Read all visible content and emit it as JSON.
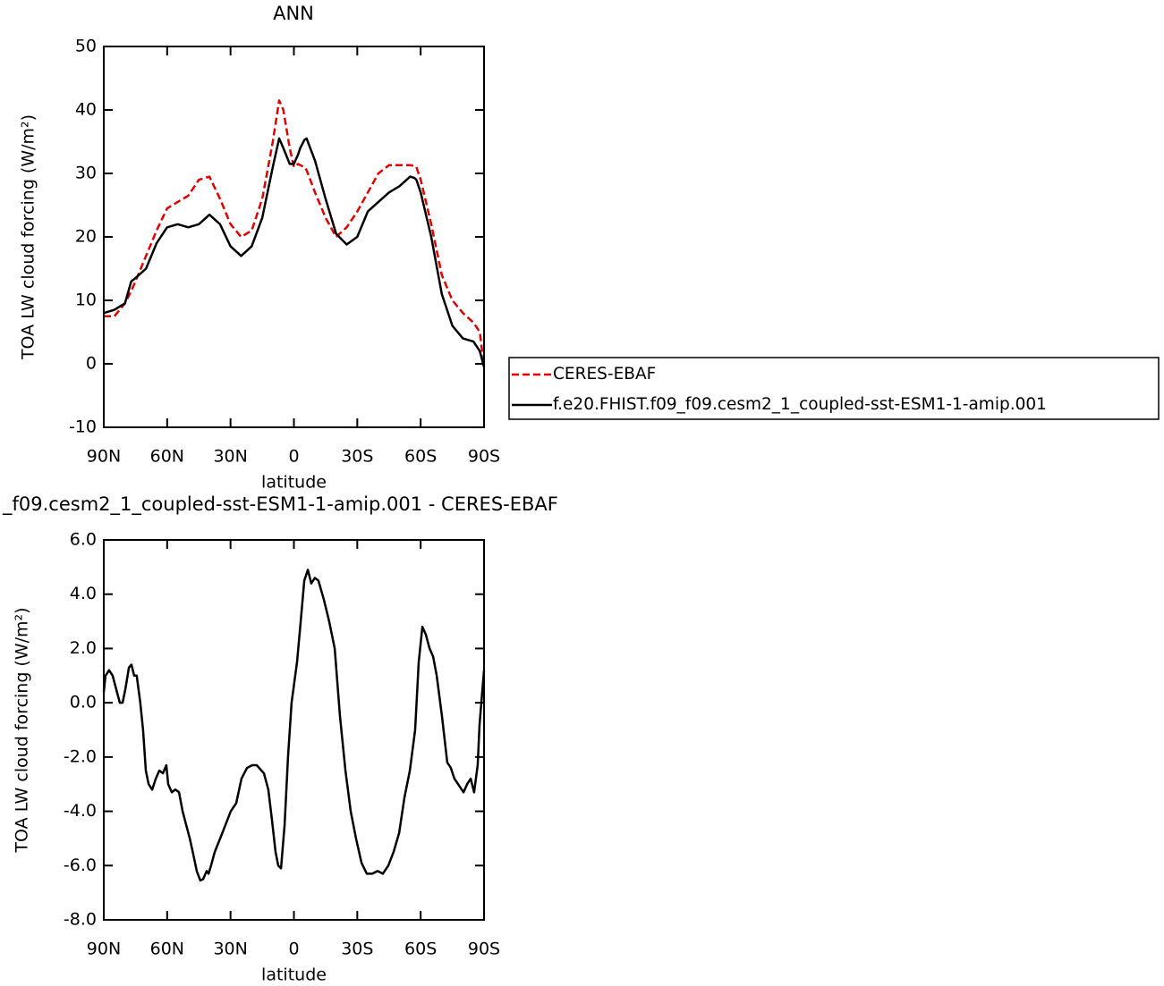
{
  "chart_data": [
    {
      "type": "line",
      "title": "ANN",
      "x_label": "latitude",
      "y_label": "TOA LW cloud forcing (W/m²)",
      "x": [
        90,
        85,
        80,
        77,
        75,
        70,
        65,
        60,
        55,
        50,
        45,
        40,
        35,
        30,
        25,
        20,
        15,
        10,
        7,
        5,
        2,
        0,
        -2,
        -3,
        -5,
        -6,
        -10,
        -15,
        -20,
        -25,
        -30,
        -35,
        -40,
        -45,
        -50,
        -55,
        -57,
        -58,
        -60,
        -65,
        -70,
        -75,
        -80,
        -85,
        -88,
        -90
      ],
      "series": [
        {
          "name": "CERES-EBAF",
          "color": "#e00000",
          "dashed": true,
          "values": [
            7.5,
            7.5,
            9.5,
            11.5,
            13,
            17,
            21,
            24.5,
            25.5,
            26.5,
            29,
            29.5,
            26,
            22,
            20,
            21,
            26,
            35,
            41.5,
            40,
            34,
            31,
            31.5,
            31.3,
            31,
            30.5,
            27,
            23,
            20,
            21.5,
            24,
            27,
            30,
            31.3,
            31.3,
            31.3,
            31.2,
            31,
            29,
            22,
            14,
            10,
            8,
            6.5,
            5,
            -0.5
          ]
        },
        {
          "name": "f.e20.FHIST.f09_f09.cesm2_1_coupled-sst-ESM1-1-amip.001",
          "color": "#000000",
          "dashed": false,
          "values": [
            8,
            8.5,
            9.5,
            13,
            13.5,
            15,
            19,
            21.5,
            22,
            21.5,
            22,
            23.5,
            22,
            18.5,
            17,
            18.5,
            23,
            31,
            35.5,
            34,
            31.5,
            31.5,
            33,
            34,
            35.3,
            35.5,
            32,
            26,
            20.5,
            18.8,
            20,
            24,
            25.5,
            27,
            28,
            29.5,
            29.3,
            29,
            27,
            20,
            11,
            6,
            4,
            3.5,
            2,
            -0.5
          ]
        }
      ],
      "xlim": [
        90,
        -90
      ],
      "xticks": [
        {
          "value": 90,
          "label": "90N"
        },
        {
          "value": 60,
          "label": "60N"
        },
        {
          "value": 30,
          "label": "30N"
        },
        0,
        {
          "value": -30,
          "label": "30S"
        },
        {
          "value": -60,
          "label": "60S"
        },
        {
          "value": -90,
          "label": "90S"
        }
      ],
      "ylim": [
        -10,
        50
      ],
      "yticks": [
        -10,
        0,
        10,
        20,
        30,
        40,
        50
      ],
      "legend": "right"
    },
    {
      "type": "line",
      "title": "_f09.cesm2_1_coupled-sst-ESM1-1-amip.001 - CERES-EBAF",
      "x_label": "latitude",
      "y_label": "TOA LW cloud forcing (W/m²)",
      "x": [
        90,
        89.2,
        88.3,
        87.5,
        85.8,
        84.1,
        82.4,
        81.1,
        79.8,
        78.1,
        76.9,
        75.6,
        74.4,
        72.7,
        71.4,
        70.1,
        68.8,
        67.1,
        65.4,
        63.7,
        62.0,
        60.4,
        59.5,
        57.8,
        56.1,
        54.4,
        52.7,
        51.0,
        49.3,
        47.6,
        46.0,
        44.3,
        43.0,
        41.3,
        40.4,
        39.2,
        37.5,
        34.9,
        32.4,
        29.9,
        27.3,
        24.8,
        22.2,
        19.7,
        17.6,
        14.2,
        12.1,
        10.4,
        8.7,
        7.4,
        6.1,
        4.4,
        2.8,
        1.1,
        -1.5,
        -3.2,
        -4.9,
        -6.6,
        -8.2,
        -9.9,
        -11.6,
        -14.2,
        -16.7,
        -19.3,
        -21.8,
        -24.4,
        -26.9,
        -29.4,
        -32.0,
        -34.5,
        -37.1,
        -39.6,
        -42.1,
        -44.7,
        -47.2,
        -49.8,
        -52.3,
        -54.9,
        -57.4,
        -59.1,
        -60.8,
        -62.5,
        -64.2,
        -65.9,
        -67.6,
        -70.1,
        -72.6,
        -74.3,
        -76.0,
        -78.6,
        -80.3,
        -82.0,
        -83.7,
        -85.3,
        -87.0,
        -87.9,
        -90
      ],
      "series": [
        {
          "color": "#000000",
          "dashed": false,
          "values": [
            0.4,
            1.0,
            1.1,
            1.2,
            1.0,
            0.5,
            0,
            0,
            0.5,
            1.3,
            1.4,
            1.0,
            1.0,
            0,
            -1.0,
            -2.5,
            -3.0,
            -3.2,
            -2.8,
            -2.5,
            -2.6,
            -2.3,
            -3.0,
            -3.3,
            -3.2,
            -3.3,
            -4.0,
            -4.5,
            -5.0,
            -5.6,
            -6.2,
            -6.55,
            -6.5,
            -6.2,
            -6.3,
            -6.0,
            -5.5,
            -5.0,
            -4.5,
            -4.0,
            -3.7,
            -2.8,
            -2.4,
            -2.3,
            -2.3,
            -2.6,
            -3.2,
            -4.3,
            -5.5,
            -6.0,
            -6.1,
            -4.5,
            -2.0,
            0,
            1.5,
            3.0,
            4.5,
            4.9,
            4.4,
            4.6,
            4.5,
            3.8,
            3.0,
            2.0,
            -0.5,
            -2.5,
            -4.0,
            -5.0,
            -5.9,
            -6.3,
            -6.3,
            -6.2,
            -6.3,
            -6.0,
            -5.5,
            -4.8,
            -3.5,
            -2.5,
            -1.0,
            1.5,
            2.8,
            2.5,
            2.0,
            1.7,
            1.0,
            -0.5,
            -2.2,
            -2.4,
            -2.8,
            -3.1,
            -3.3,
            -3.0,
            -2.8,
            -3.3,
            -2.3,
            -0.8,
            1.2
          ]
        }
      ],
      "xlim": [
        90,
        -90
      ],
      "xticks": [
        {
          "value": 90,
          "label": "90N"
        },
        {
          "value": 60,
          "label": "60N"
        },
        {
          "value": 30,
          "label": "30N"
        },
        0,
        {
          "value": -30,
          "label": "30S"
        },
        {
          "value": -60,
          "label": "60S"
        },
        {
          "value": -90,
          "label": "90S"
        }
      ],
      "ylim": [
        -8,
        6
      ],
      "yticks": [
        {
          "value": -8,
          "label": "-8.0"
        },
        {
          "value": -6,
          "label": "-6.0"
        },
        {
          "value": -4,
          "label": "-4.0"
        },
        {
          "value": -2,
          "label": "-2.0"
        },
        {
          "value": 0,
          "label": "0.0"
        },
        {
          "value": 2,
          "label": "2.0"
        },
        {
          "value": 4,
          "label": "4.0"
        },
        {
          "value": 6,
          "label": "6.0"
        }
      ]
    }
  ]
}
